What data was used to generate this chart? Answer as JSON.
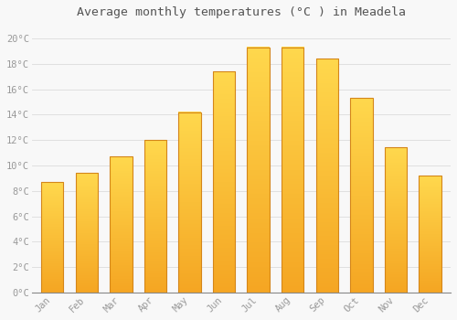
{
  "title": "Average monthly temperatures (°C ) in Meadela",
  "months": [
    "Jan",
    "Feb",
    "Mar",
    "Apr",
    "May",
    "Jun",
    "Jul",
    "Aug",
    "Sep",
    "Oct",
    "Nov",
    "Dec"
  ],
  "values": [
    8.7,
    9.4,
    10.7,
    12.0,
    14.2,
    17.4,
    19.3,
    19.3,
    18.4,
    15.3,
    11.4,
    9.2
  ],
  "bar_color_bottom": "#F5A623",
  "bar_color_top": "#FFD84D",
  "bar_edge_color": "#D4861A",
  "background_color": "#F8F8F8",
  "grid_color": "#E0E0E0",
  "text_color": "#999999",
  "title_color": "#555555",
  "ylim": [
    0,
    21
  ],
  "yticks": [
    0,
    2,
    4,
    6,
    8,
    10,
    12,
    14,
    16,
    18,
    20
  ],
  "ylabel_format": "°C",
  "figsize": [
    5.0,
    3.5
  ],
  "dpi": 100,
  "title_fontsize": 9.5,
  "tick_fontsize": 7.5,
  "font_family": "monospace",
  "bar_width": 0.65
}
